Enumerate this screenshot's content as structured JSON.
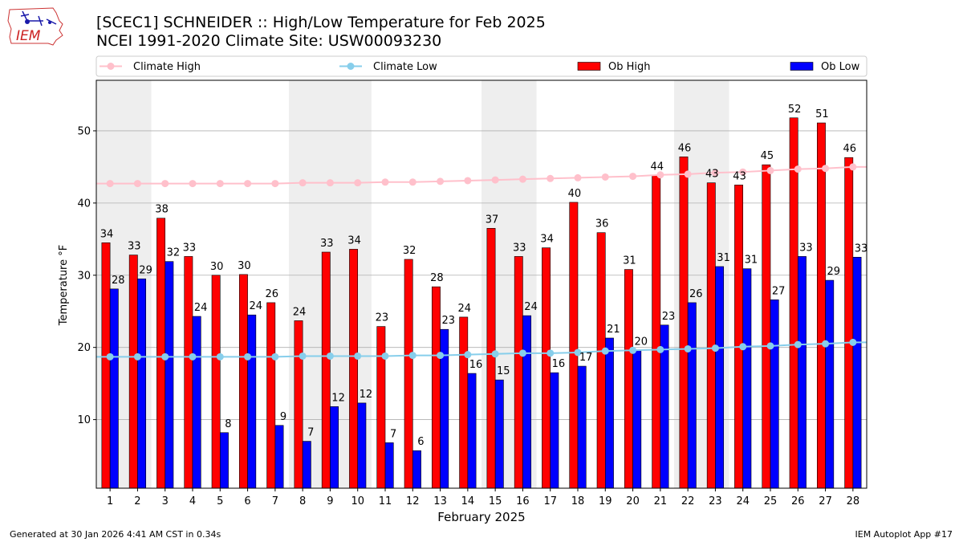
{
  "title_line1": "[SCEC1] SCHNEIDER :: High/Low Temperature for Feb 2025",
  "title_line2": "NCEI 1991-2020 Climate Site: USW00093230",
  "logo_text": "IEM",
  "footer_left": "Generated at 30 Jan 2026 4:41 AM CST in 0.34s",
  "footer_right": "IEM Autoplot App #17",
  "colors": {
    "ob_high": "#ff0000",
    "ob_low": "#0000ff",
    "climate_high": "#ffc0cb",
    "climate_low": "#87ceeb",
    "weekend_shade": "#eeeeee",
    "grid": "#b0b0b0"
  },
  "chart_data": {
    "type": "bar",
    "xlabel": "February 2025",
    "ylabel": "Temperature °F",
    "ylim": [
      0.5,
      57
    ],
    "yticks": [
      10,
      20,
      30,
      40,
      50
    ],
    "grid": "horizontal",
    "legend_position": "top",
    "categories": [
      "1",
      "2",
      "3",
      "4",
      "5",
      "6",
      "7",
      "8",
      "9",
      "10",
      "11",
      "12",
      "13",
      "14",
      "15",
      "16",
      "17",
      "18",
      "19",
      "20",
      "21",
      "22",
      "23",
      "24",
      "25",
      "26",
      "27",
      "28"
    ],
    "shaded_days": [
      [
        1,
        2
      ],
      [
        8,
        10
      ],
      [
        15,
        16
      ],
      [
        22,
        23
      ]
    ],
    "series": [
      {
        "name": "Climate High",
        "kind": "line",
        "values": [
          42.7,
          42.7,
          42.7,
          42.7,
          42.7,
          42.7,
          42.7,
          42.8,
          42.8,
          42.8,
          42.9,
          42.9,
          43.0,
          43.1,
          43.2,
          43.3,
          43.4,
          43.5,
          43.6,
          43.7,
          43.9,
          44.0,
          44.2,
          44.3,
          44.5,
          44.7,
          44.8,
          45.0
        ]
      },
      {
        "name": "Climate Low",
        "kind": "line",
        "values": [
          18.7,
          18.7,
          18.7,
          18.7,
          18.7,
          18.7,
          18.7,
          18.8,
          18.8,
          18.8,
          18.8,
          18.9,
          18.9,
          19.0,
          19.1,
          19.2,
          19.2,
          19.3,
          19.5,
          19.6,
          19.7,
          19.8,
          19.9,
          20.1,
          20.2,
          20.4,
          20.5,
          20.7
        ]
      },
      {
        "name": "Ob High",
        "kind": "bar",
        "values": [
          34.5,
          32.8,
          37.9,
          32.6,
          30.0,
          30.1,
          26.2,
          23.7,
          33.2,
          33.6,
          22.9,
          32.2,
          28.4,
          24.2,
          36.5,
          32.6,
          33.8,
          40.1,
          35.9,
          30.8,
          43.8,
          46.4,
          42.8,
          42.5,
          45.3,
          51.8,
          51.1,
          46.3
        ],
        "labels": [
          "34",
          "33",
          "38",
          "33",
          "30",
          "30",
          "26",
          "24",
          "33",
          "34",
          "23",
          "32",
          "28",
          "24",
          "37",
          "33",
          "34",
          "40",
          "36",
          "31",
          "44",
          "46",
          "43",
          "43",
          "45",
          "52",
          "51",
          "46"
        ]
      },
      {
        "name": "Ob Low",
        "kind": "bar",
        "values": [
          28.1,
          29.5,
          31.9,
          24.3,
          8.2,
          24.5,
          9.2,
          7.0,
          11.8,
          12.3,
          6.8,
          5.7,
          22.5,
          16.4,
          15.5,
          24.4,
          16.5,
          17.4,
          21.3,
          19.6,
          23.1,
          26.2,
          31.2,
          30.9,
          26.6,
          32.6,
          29.3,
          32.5
        ],
        "labels": [
          "28",
          "29",
          "32",
          "24",
          "8",
          "24",
          "9",
          "7",
          "12",
          "12",
          "7",
          "6",
          "23",
          "16",
          "15",
          "24",
          "16",
          "17",
          "21",
          "20",
          "23",
          "26",
          "31",
          "31",
          "27",
          "33",
          "29",
          "33"
        ]
      }
    ]
  }
}
